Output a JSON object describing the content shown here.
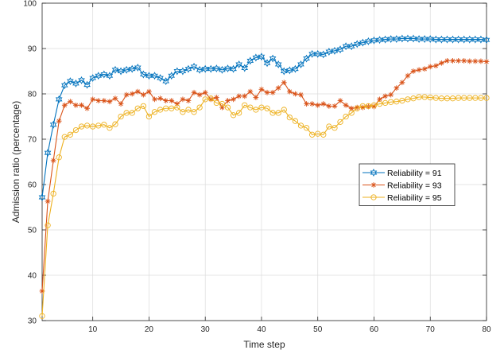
{
  "chart_data": {
    "type": "line",
    "xlabel": "Time step",
    "ylabel": "Admission ratio (percentage)",
    "xlim": [
      1,
      80
    ],
    "ylim": [
      30,
      100
    ],
    "xticks": [
      10,
      20,
      30,
      40,
      50,
      60,
      70,
      80
    ],
    "yticks": [
      30,
      40,
      50,
      60,
      70,
      80,
      90,
      100
    ],
    "grid": true,
    "legend_position": "right",
    "x": [
      1,
      2,
      3,
      4,
      5,
      6,
      7,
      8,
      9,
      10,
      11,
      12,
      13,
      14,
      15,
      16,
      17,
      18,
      19,
      20,
      21,
      22,
      23,
      24,
      25,
      26,
      27,
      28,
      29,
      30,
      31,
      32,
      33,
      34,
      35,
      36,
      37,
      38,
      39,
      40,
      41,
      42,
      43,
      44,
      45,
      46,
      47,
      48,
      49,
      50,
      51,
      52,
      53,
      54,
      55,
      56,
      57,
      58,
      59,
      60,
      61,
      62,
      63,
      64,
      65,
      66,
      67,
      68,
      69,
      70,
      71,
      72,
      73,
      74,
      75,
      76,
      77,
      78,
      79,
      80
    ],
    "series": [
      {
        "name": "Reliability = 91",
        "color": "#0072BD",
        "marker": "hexagram",
        "values": [
          57.2,
          67,
          73.2,
          78.8,
          81.9,
          82.8,
          82.3,
          83,
          82,
          83.5,
          84,
          84.3,
          84,
          85.3,
          85,
          85.3,
          85.5,
          85.8,
          84.3,
          84,
          84,
          83.5,
          82.8,
          84,
          85,
          85,
          85.5,
          86,
          85.3,
          85.5,
          85.5,
          85.6,
          85.3,
          85.6,
          85.5,
          86.5,
          85.7,
          87.3,
          88,
          88.2,
          86.8,
          87.8,
          86.5,
          85,
          85.2,
          85.5,
          86.5,
          87.8,
          88.8,
          88.8,
          88.7,
          89.3,
          89.5,
          89.8,
          90.5,
          90.5,
          91,
          91.3,
          91.6,
          91.8,
          91.9,
          92,
          92.1,
          92.1,
          92.2,
          92.2,
          92.2,
          92.1,
          92.1,
          92.1,
          92,
          92,
          92,
          92,
          92,
          92,
          92,
          92,
          92,
          91.9
        ]
      },
      {
        "name": "Reliability = 93",
        "color": "#D95319",
        "marker": "asterisk",
        "values": [
          36.5,
          56.3,
          65.3,
          74,
          77.5,
          78.3,
          77.5,
          77.5,
          76.8,
          78.8,
          78.5,
          78.5,
          78.3,
          79,
          77.8,
          79.8,
          80,
          80.5,
          79.8,
          80.5,
          78.8,
          79,
          78.5,
          78.5,
          77.8,
          78.8,
          78.5,
          80.3,
          79.8,
          80.3,
          78.8,
          79.2,
          77,
          78.5,
          78.8,
          79.5,
          79.5,
          80.5,
          79.2,
          81,
          80.3,
          80.3,
          81.3,
          82.5,
          80.5,
          80,
          79.8,
          77.8,
          77.8,
          77.5,
          77.8,
          77.3,
          77.3,
          78.5,
          77.5,
          76.8,
          77,
          77,
          77.2,
          77.2,
          78.8,
          79.5,
          79.8,
          81.3,
          82.5,
          84,
          85,
          85.3,
          85.5,
          86,
          86.2,
          86.8,
          87.3,
          87.3,
          87.3,
          87.3,
          87.2,
          87.2,
          87.2,
          87.1
        ]
      },
      {
        "name": "Reliability = 95",
        "color": "#EDB120",
        "marker": "circle",
        "values": [
          31,
          51,
          58,
          66,
          70.5,
          71,
          72,
          72.8,
          73,
          72.8,
          73,
          73.2,
          72.5,
          73.3,
          75,
          75.8,
          75.8,
          76.8,
          77.3,
          75,
          76,
          76.5,
          76.8,
          76.8,
          77,
          76,
          76.5,
          76,
          77,
          78.8,
          79,
          78,
          77.8,
          77,
          75.3,
          75.8,
          77.5,
          77,
          76.5,
          77,
          76.8,
          75.8,
          75.8,
          76.5,
          74.8,
          74,
          73,
          72.5,
          71,
          71.2,
          71,
          72.8,
          72.5,
          73.8,
          75,
          75.8,
          76.8,
          77.3,
          77.3,
          77.5,
          77.8,
          78,
          78.2,
          78.3,
          78.5,
          78.8,
          79,
          79.3,
          79.3,
          79.2,
          79.1,
          79,
          79,
          79,
          79.1,
          79.1,
          79.1,
          79.1,
          79.1,
          79.1
        ]
      }
    ]
  }
}
